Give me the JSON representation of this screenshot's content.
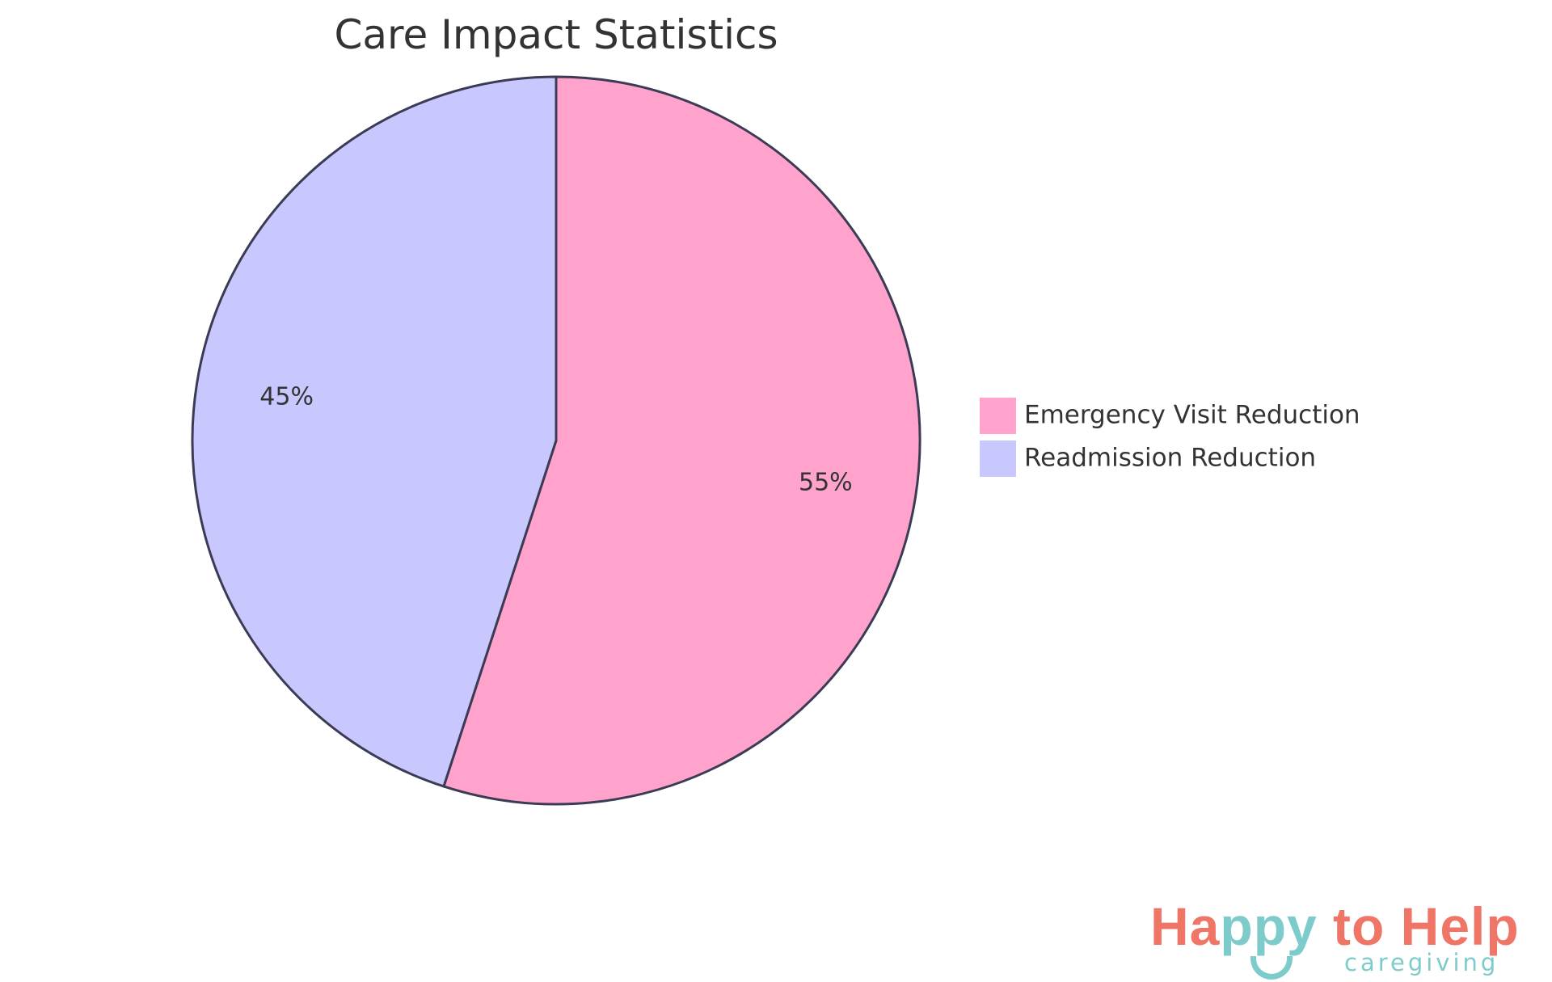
{
  "chart_data": {
    "type": "pie",
    "title": "Care Impact Statistics",
    "slices": [
      {
        "label": "Emergency Visit Reduction",
        "value": 55,
        "display": "55%",
        "color": "#ffa3cd"
      },
      {
        "label": "Readmission Reduction",
        "value": 45,
        "display": "45%",
        "color": "#c8c8ff"
      }
    ],
    "start_angle": "top",
    "direction": "clockwise",
    "stroke_color": "#3b3b55",
    "legend_position": "right"
  },
  "logo": {
    "text_main": "Happy to Help",
    "part_a": "Ha",
    "part_b": "ppy",
    "part_c": " to Help",
    "text_sub": "caregiving"
  }
}
